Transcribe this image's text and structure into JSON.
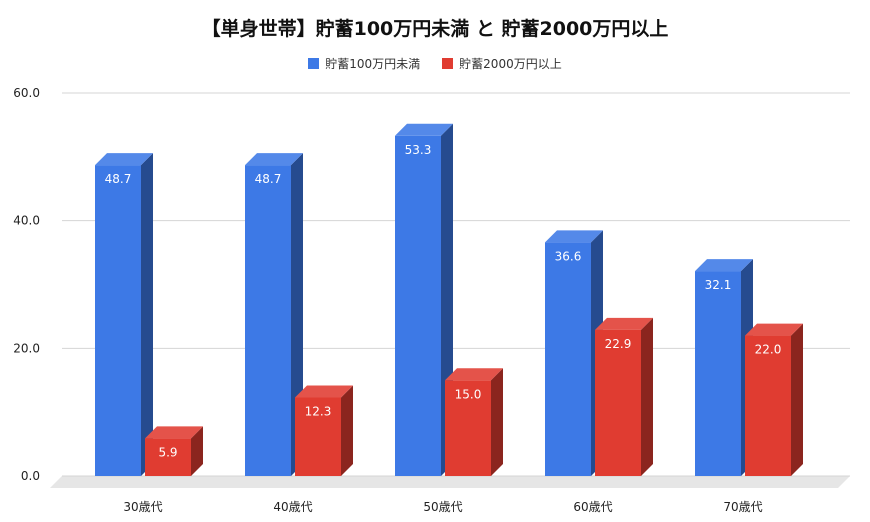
{
  "chart_data": {
    "type": "bar",
    "title": "【単身世帯】貯蓄100万円未満 と 貯蓄2000万円以上",
    "categories": [
      "30歳代",
      "40歳代",
      "50歳代",
      "60歳代",
      "70歳代"
    ],
    "series": [
      {
        "name": "貯蓄100万円未満",
        "values": [
          48.7,
          48.7,
          53.3,
          36.6,
          32.1
        ],
        "color": "#3d79e6"
      },
      {
        "name": "貯蓄2000万円以上",
        "values": [
          5.9,
          12.3,
          15.0,
          22.9,
          22.0
        ],
        "color": "#e03c31"
      }
    ],
    "yticks": [
      "0.0",
      "20.0",
      "40.0",
      "60.0"
    ],
    "ylim": [
      0,
      60
    ],
    "grid": true,
    "legend_position": "top",
    "style": "3d"
  }
}
